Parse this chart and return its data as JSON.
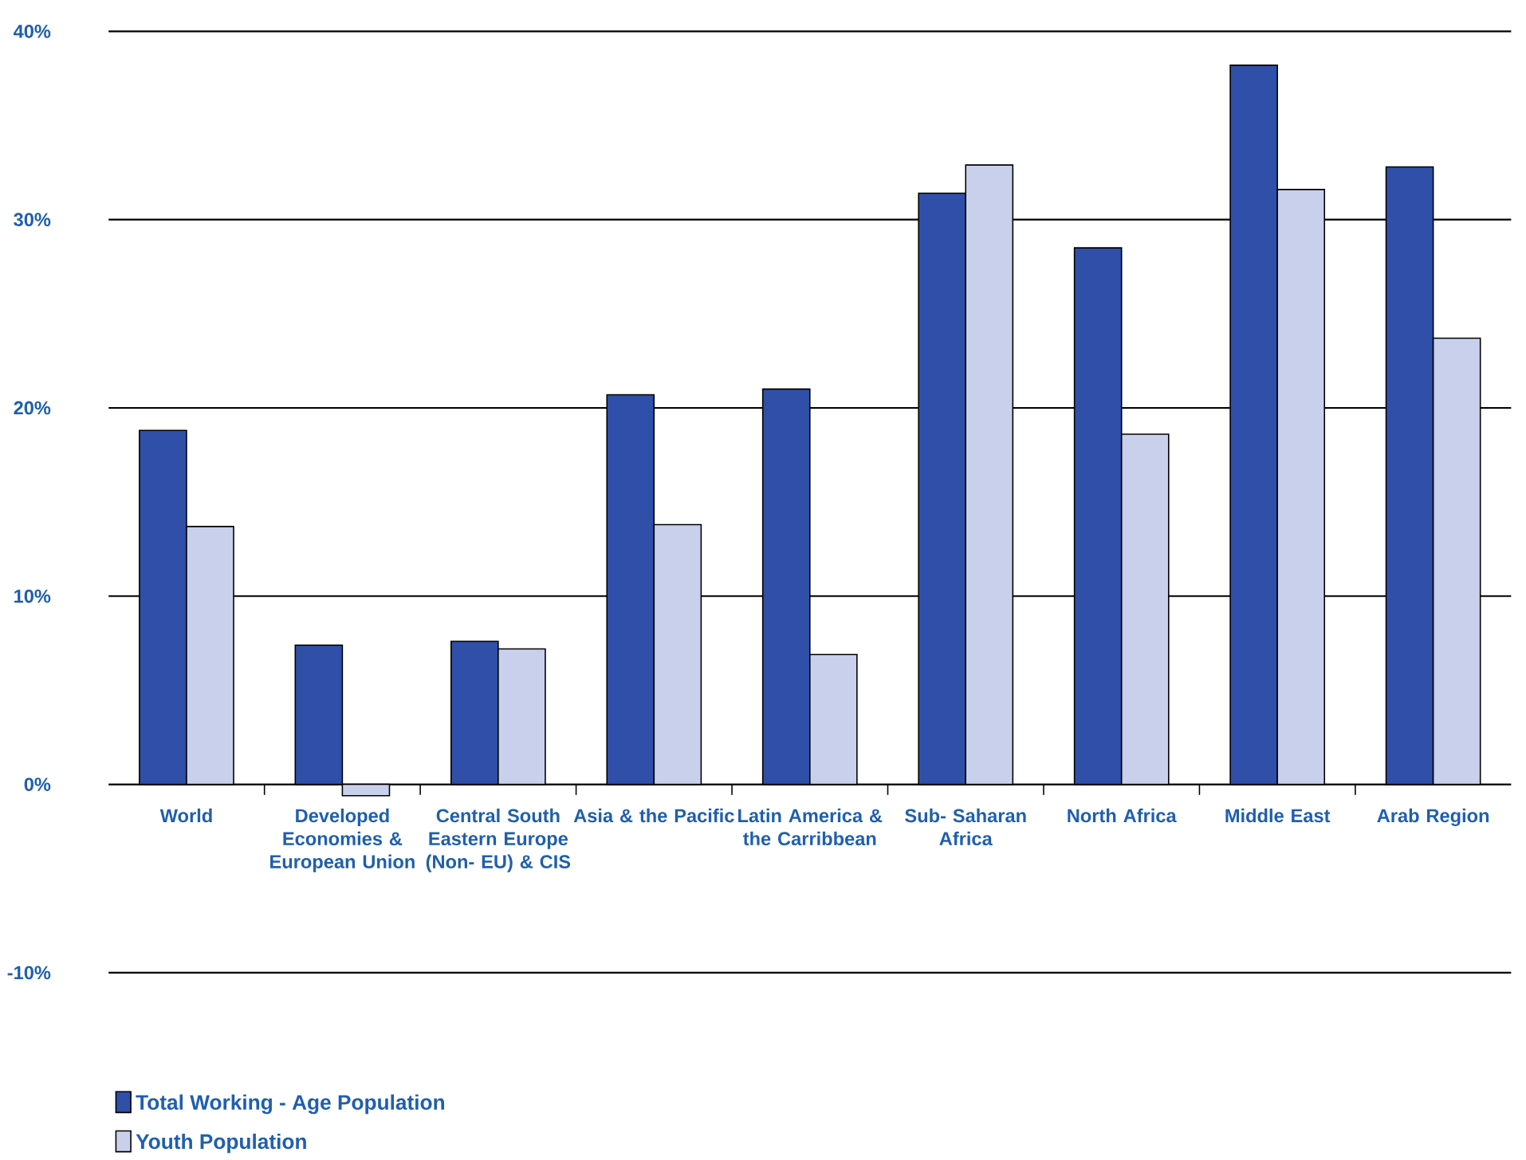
{
  "chart_data": {
    "type": "bar",
    "categories": [
      "World",
      "Developed Economies & European Union",
      "Central South Eastern Europe (Non- EU) & CIS",
      "Asia & the Pacific",
      "Latin America & the Carribbean",
      "Sub- Saharan Africa",
      "North Africa",
      "Middle East",
      "Arab Region"
    ],
    "series": [
      {
        "name": "Total Working - Age Population",
        "color": "#2f4fa8",
        "values": [
          18.8,
          7.4,
          7.6,
          20.7,
          21.0,
          31.4,
          28.5,
          38.2,
          32.8
        ]
      },
      {
        "name": "Youth Population",
        "color": "#c8d0ec",
        "values": [
          13.7,
          -0.6,
          7.2,
          13.8,
          6.9,
          32.9,
          18.6,
          31.6,
          23.7
        ]
      }
    ],
    "ylim": [
      -10,
      40
    ],
    "yticks": [
      {
        "value": -10,
        "label": "-10%"
      },
      {
        "value": 0,
        "label": "0%"
      },
      {
        "value": 10,
        "label": "10%"
      },
      {
        "value": 20,
        "label": "20%"
      },
      {
        "value": 30,
        "label": "30%"
      },
      {
        "value": 40,
        "label": "40%"
      }
    ],
    "grid": "y",
    "legend": "bottom left"
  }
}
